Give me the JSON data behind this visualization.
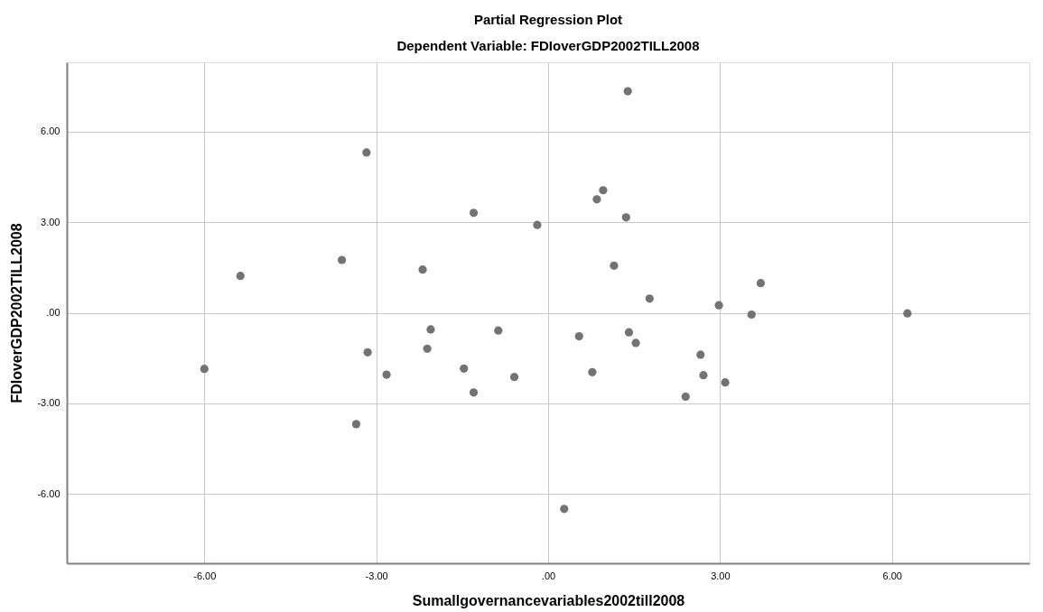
{
  "chart_data": {
    "type": "scatter",
    "title": "Partial Regression Plot",
    "subtitle": "Dependent Variable: FDIoverGDP2002TILL2008",
    "xlabel": "Sumallgovernancevariables2002till2008",
    "ylabel": "FDIoverGDP2002TILL2008",
    "x": [
      -3.17,
      -1.3,
      -3.6,
      -5.37,
      -2.19,
      1.39,
      0.96,
      0.85,
      1.36,
      -0.19,
      1.15,
      1.77,
      2.98,
      3.71,
      3.55,
      6.27,
      -6.0,
      -3.15,
      -2.82,
      -3.35,
      -2.11,
      -2.05,
      -1.47,
      -1.3,
      -0.87,
      -0.59,
      0.54,
      0.77,
      1.41,
      1.53,
      2.66,
      2.71,
      3.09,
      2.4,
      0.28
    ],
    "values": [
      5.31,
      3.31,
      1.75,
      1.22,
      1.43,
      7.34,
      4.06,
      3.76,
      3.16,
      2.91,
      1.56,
      0.47,
      0.25,
      0.98,
      -0.06,
      -0.02,
      -1.86,
      -1.31,
      -2.05,
      -3.69,
      -1.19,
      -0.55,
      -1.85,
      -2.64,
      -0.59,
      -2.13,
      -0.78,
      -1.97,
      -0.65,
      -1.0,
      -1.39,
      -2.07,
      -2.31,
      -2.78,
      -6.5
    ],
    "color": "#737373",
    "marker": "circle",
    "xlim": [
      -8.4,
      8.4
    ],
    "ylim": [
      -8.3,
      8.3
    ],
    "xticks": [
      {
        "value": -6,
        "label": "-6.00"
      },
      {
        "value": -3,
        "label": "-3.00"
      },
      {
        "value": 0,
        "label": ".00"
      },
      {
        "value": 3,
        "label": "3.00"
      },
      {
        "value": 6,
        "label": "6.00"
      }
    ],
    "yticks": [
      {
        "value": -6,
        "label": "-6.00"
      },
      {
        "value": -3,
        "label": "-3.00"
      },
      {
        "value": 0,
        "label": ".00"
      },
      {
        "value": 3,
        "label": "3.00"
      },
      {
        "value": 6,
        "label": "6.00"
      }
    ],
    "grid": true
  }
}
